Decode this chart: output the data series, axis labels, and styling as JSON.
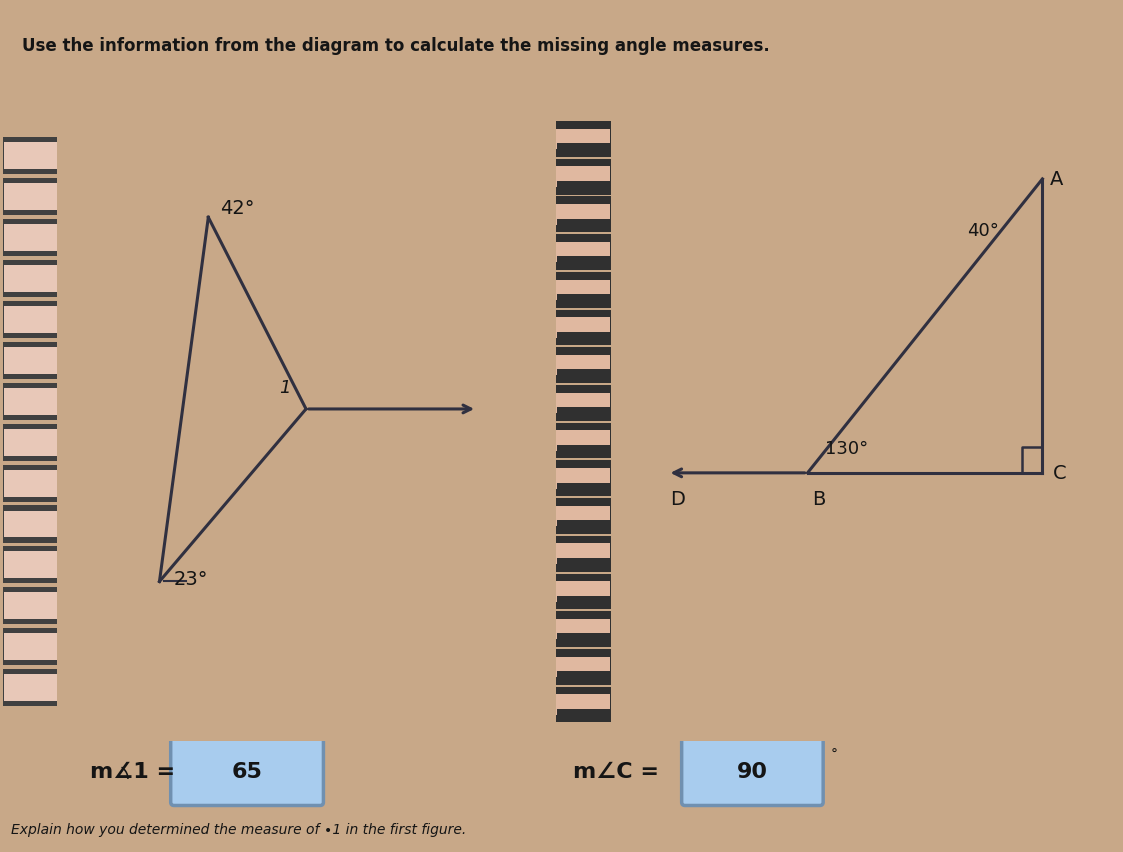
{
  "title_line2": "Use the information from the diagram to calculate the missing angle measures.",
  "bg_color_top": "#c8b898",
  "bg_color_panel": "#e8c8b8",
  "fig_bg": "#c8a888",
  "fig1": {
    "angle_top": "42°",
    "angle_bottom": "23°",
    "angle_label": "1"
  },
  "fig2": {
    "angle_A": "40°",
    "angle_B": "130°",
    "label_A": "A",
    "label_B": "B",
    "label_C": "C",
    "label_D": "D"
  },
  "answer1_label": "m∡1 =",
  "answer1_value": "65",
  "answer2_label": "m∠C =",
  "answer2_value": "90",
  "bottom_text": "Explain how you determined the measure of ∙1 in the first figure.",
  "line_color": "#303040",
  "text_color": "#151515",
  "box_color": "#a8ccee",
  "box_border": "#7090b0",
  "spiral_fill": "#e8c8b8",
  "spiral_border": "#404040",
  "chain_fill": "#e0b8a0",
  "chain_border": "#303030"
}
